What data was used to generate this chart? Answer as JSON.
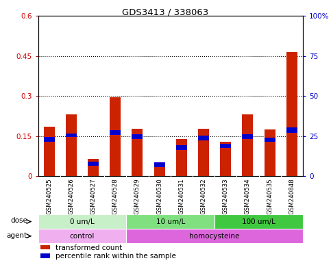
{
  "title": "GDS3413 / 338063",
  "samples": [
    "GSM240525",
    "GSM240526",
    "GSM240527",
    "GSM240528",
    "GSM240529",
    "GSM240530",
    "GSM240531",
    "GSM240532",
    "GSM240533",
    "GSM240534",
    "GSM240535",
    "GSM240848"
  ],
  "red_values": [
    0.185,
    0.23,
    0.065,
    0.295,
    0.178,
    0.04,
    0.14,
    0.178,
    0.13,
    0.23,
    0.175,
    0.465
  ],
  "blue_bottom": [
    0.128,
    0.148,
    0.038,
    0.155,
    0.14,
    0.035,
    0.098,
    0.135,
    0.105,
    0.14,
    0.128,
    0.162
  ],
  "blue_height": [
    0.02,
    0.012,
    0.016,
    0.018,
    0.018,
    0.016,
    0.018,
    0.016,
    0.016,
    0.018,
    0.016,
    0.02
  ],
  "ylim_left": [
    0,
    0.6
  ],
  "ylim_right": [
    0,
    100
  ],
  "yticks_left": [
    0,
    0.15,
    0.3,
    0.45,
    0.6
  ],
  "yticks_right": [
    0,
    25,
    50,
    75,
    100
  ],
  "ytick_labels_left": [
    "0",
    "0.15",
    "0.3",
    "0.45",
    "0.6"
  ],
  "ytick_labels_right": [
    "0",
    "25",
    "50",
    "75",
    "100%"
  ],
  "hlines": [
    0.15,
    0.3,
    0.45
  ],
  "dose_groups": [
    {
      "label": "0 um/L",
      "start": 0,
      "end": 4,
      "color": "#c8f0c8"
    },
    {
      "label": "10 um/L",
      "start": 4,
      "end": 8,
      "color": "#80e080"
    },
    {
      "label": "100 um/L",
      "start": 8,
      "end": 12,
      "color": "#40c840"
    }
  ],
  "agent_groups": [
    {
      "label": "control",
      "start": 0,
      "end": 4,
      "color": "#f0b0f0"
    },
    {
      "label": "homocysteine",
      "start": 4,
      "end": 12,
      "color": "#dd66dd"
    }
  ],
  "red_color": "#cc2200",
  "blue_color": "#0000cc",
  "bar_width": 0.5,
  "grid_color": "#000000",
  "tick_color_left": "#cc0000",
  "tick_color_right": "#0000cc",
  "bg_color": "#ffffff",
  "label_bg_color": "#d8d8d8",
  "legend_items": [
    {
      "label": "transformed count",
      "color": "#cc2200"
    },
    {
      "label": "percentile rank within the sample",
      "color": "#0000cc"
    }
  ]
}
